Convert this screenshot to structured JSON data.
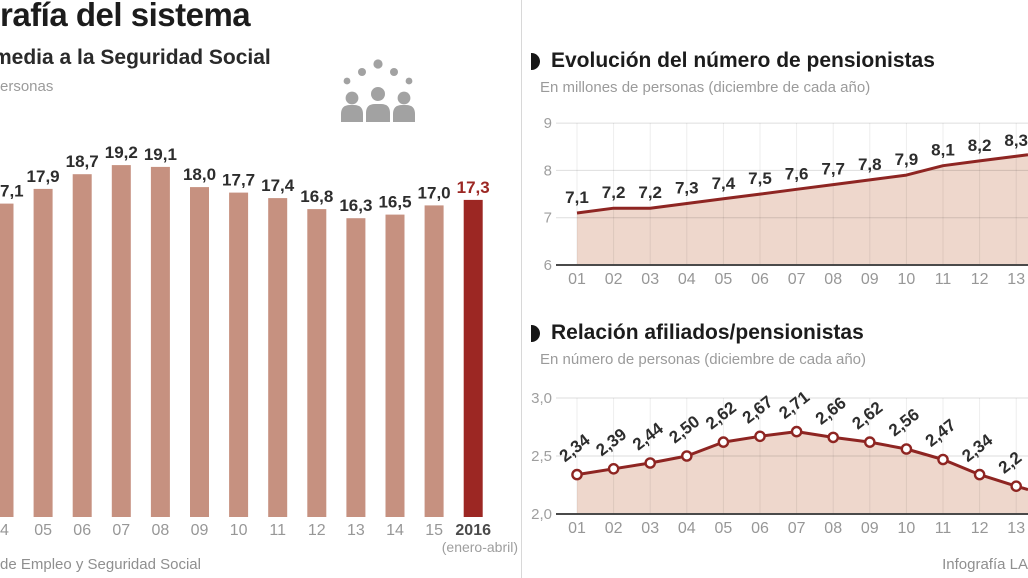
{
  "header": {
    "title": "rafía del sistema"
  },
  "footer": {
    "left": "de Empleo y Seguridad Social",
    "right": "Infografía LA"
  },
  "colors": {
    "bar": "#c69180",
    "bar_highlight": "#9c2723",
    "line": "#8e2522",
    "area_fill": "#eed7cc",
    "marker_fill": "#ffffff",
    "grid": "#d9d9d9",
    "axis": "#4a4a4a",
    "tick_text": "#9e9e9e",
    "value_text": "#2d2d2d",
    "muted_text": "#8f8f8f",
    "icon_gray": "#a2a2a2"
  },
  "chart_data": [
    {
      "type": "bar",
      "title": "media a la Seguridad Social",
      "units_label": "ersonas",
      "categories": [
        "4",
        "05",
        "06",
        "07",
        "08",
        "09",
        "10",
        "11",
        "12",
        "13",
        "14",
        "15",
        "2016"
      ],
      "values": [
        17.1,
        17.9,
        18.7,
        19.2,
        19.1,
        18.0,
        17.7,
        17.4,
        16.8,
        16.3,
        16.5,
        17.0,
        17.3
      ],
      "value_labels": [
        "7,1",
        "17,9",
        "18,7",
        "19,2",
        "19,1",
        "18,0",
        "17,7",
        "17,4",
        "16,8",
        "16,3",
        "16,5",
        "17,0",
        "17,3"
      ],
      "highlight_index": 12,
      "footnote": "(enero-abril)",
      "bar_color": "#c69180",
      "highlight_color": "#9c2723",
      "grid": false
    },
    {
      "type": "area",
      "title": "Evolución del número de pensionistas",
      "subtitle": "En millones de personas (diciembre de cada año)",
      "categories": [
        "01",
        "02",
        "03",
        "04",
        "05",
        "06",
        "07",
        "08",
        "09",
        "10",
        "11",
        "12",
        "13"
      ],
      "values": [
        7.1,
        7.2,
        7.2,
        7.3,
        7.4,
        7.5,
        7.6,
        7.7,
        7.8,
        7.9,
        8.1,
        8.2,
        8.3
      ],
      "value_labels": [
        "7,1",
        "7,2",
        "7,2",
        "7,3",
        "7,4",
        "7,5",
        "7,6",
        "7,7",
        "7,8",
        "7,9",
        "8,1",
        "8,2",
        "8,3"
      ],
      "ylim": [
        6,
        9
      ],
      "yticks": [
        {
          "label": "9",
          "value": 9
        },
        {
          "label": "8",
          "value": 8
        },
        {
          "label": "7",
          "value": 7
        },
        {
          "label": "6",
          "value": 6
        }
      ],
      "edge_value": 8.33,
      "markers": false,
      "label_style": "horizontal",
      "line_color": "#8e2522",
      "fill_color": "#eed7cc",
      "grid": true
    },
    {
      "type": "line",
      "title": "Relación afiliados/pensionistas",
      "subtitle": "En número de personas (diciembre de cada año)",
      "categories": [
        "01",
        "02",
        "03",
        "04",
        "05",
        "06",
        "07",
        "08",
        "09",
        "10",
        "11",
        "12",
        "13"
      ],
      "values": [
        2.34,
        2.39,
        2.44,
        2.5,
        2.62,
        2.67,
        2.71,
        2.66,
        2.62,
        2.56,
        2.47,
        2.34,
        2.24
      ],
      "value_labels": [
        "2,34",
        "2,39",
        "2,44",
        "2,50",
        "2,62",
        "2,67",
        "2,71",
        "2,66",
        "2,62",
        "2,56",
        "2,47",
        "2,34",
        "2,2"
      ],
      "ylim": [
        2,
        3
      ],
      "yticks": [
        {
          "label": "3,0",
          "value": 3.0
        },
        {
          "label": "2,5",
          "value": 2.5
        },
        {
          "label": "2,0",
          "value": 2.0
        }
      ],
      "edge_value": 2.21,
      "markers": true,
      "label_style": "rotated",
      "line_color": "#8e2522",
      "fill_color": "#eed7cc",
      "grid": true
    }
  ]
}
